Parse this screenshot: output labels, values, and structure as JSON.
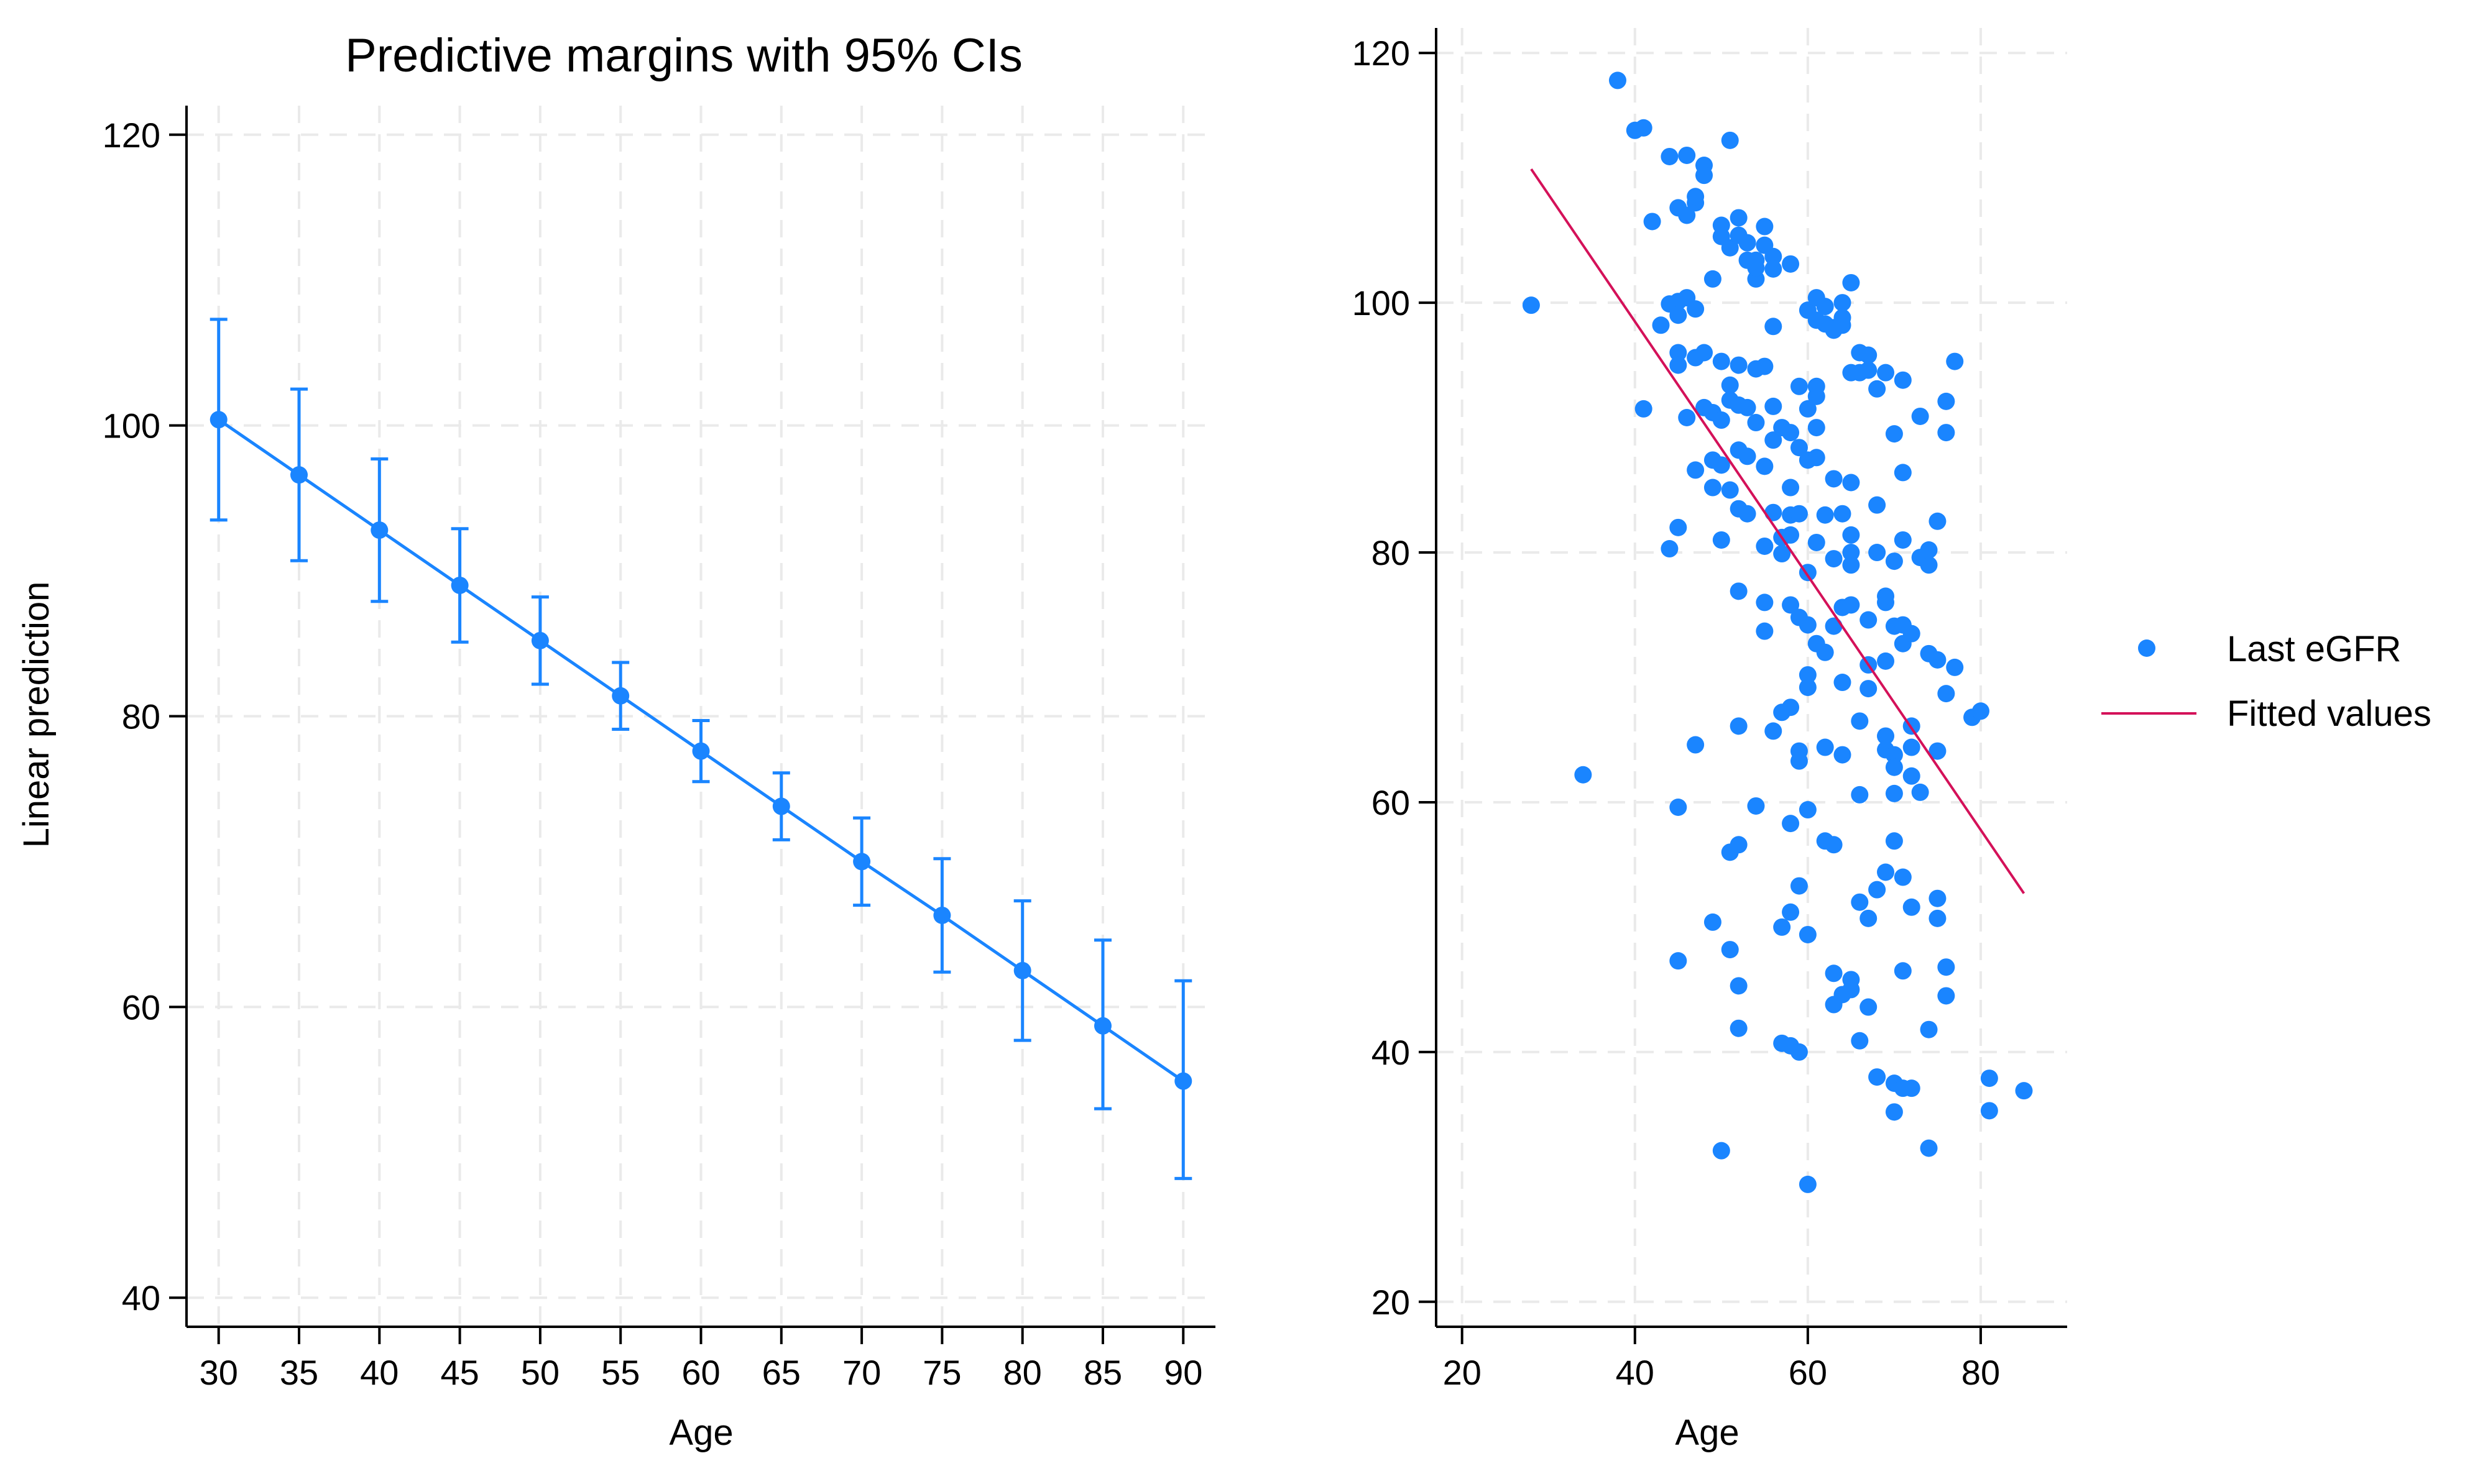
{
  "colors": {
    "series": "#1a85ff",
    "fit": "#d41159",
    "axis": "#000000",
    "grid": "#eaeaea"
  },
  "chart_data": [
    {
      "type": "line",
      "title": "Predictive margins with 95% CIs",
      "xlabel": "Age",
      "ylabel": "Linear prediction",
      "xlim": [
        28,
        92
      ],
      "ylim": [
        38,
        122
      ],
      "xticks": [
        30,
        35,
        40,
        45,
        50,
        55,
        60,
        65,
        70,
        75,
        80,
        85,
        90
      ],
      "yticks": [
        40,
        60,
        80,
        100,
        120
      ],
      "grid": true,
      "series": [
        {
          "name": "Linear prediction",
          "x": [
            30,
            35,
            40,
            45,
            50,
            55,
            60,
            65,
            70,
            75,
            80,
            85,
            90
          ],
          "values": [
            100.4,
            96.6,
            92.8,
            89.0,
            85.2,
            81.4,
            77.6,
            73.8,
            70.0,
            66.3,
            62.5,
            58.7,
            54.9
          ],
          "ci_low": [
            93.5,
            90.7,
            87.9,
            85.1,
            82.2,
            79.1,
            75.5,
            71.5,
            67.0,
            62.4,
            57.7,
            53.0,
            48.2
          ],
          "ci_high": [
            107.3,
            102.5,
            97.7,
            92.9,
            88.2,
            83.7,
            79.7,
            76.1,
            73.0,
            70.2,
            67.3,
            64.6,
            61.8
          ]
        }
      ]
    },
    {
      "type": "scatter",
      "title": "",
      "xlabel": "Age",
      "ylabel": "",
      "xlim": [
        17,
        90
      ],
      "ylim": [
        18,
        122
      ],
      "xticks": [
        20,
        40,
        60,
        80
      ],
      "yticks": [
        20,
        40,
        60,
        80,
        100,
        120
      ],
      "grid": true,
      "legend": {
        "position": "right",
        "entries": [
          "Last eGFR",
          "Fitted values"
        ]
      },
      "series": [
        {
          "name": "Last eGFR",
          "kind": "scatter",
          "points": [
            [
              28,
              99.8
            ],
            [
              34,
              62.2
            ],
            [
              38,
              117.8
            ],
            [
              40,
              113.8
            ],
            [
              41,
              114.0
            ],
            [
              41,
              91.5
            ],
            [
              42,
              106.5
            ],
            [
              43,
              98.2
            ],
            [
              44,
              111.7
            ],
            [
              44,
              99.9
            ],
            [
              44,
              80.3
            ],
            [
              45,
              107.6
            ],
            [
              45,
              100.1
            ],
            [
              45,
              99.0
            ],
            [
              45,
              96.0
            ],
            [
              45,
              95.0
            ],
            [
              45,
              82.0
            ],
            [
              45,
              59.6
            ],
            [
              45,
              47.3
            ],
            [
              46,
              111.8
            ],
            [
              46,
              107.0
            ],
            [
              46,
              100.4
            ],
            [
              46,
              90.8
            ],
            [
              47,
              108.0
            ],
            [
              47,
              108.5
            ],
            [
              47,
              99.5
            ],
            [
              47,
              95.6
            ],
            [
              47,
              86.6
            ],
            [
              47,
              64.6
            ],
            [
              48,
              111.0
            ],
            [
              48,
              110.2
            ],
            [
              48,
              96.0
            ],
            [
              48,
              91.6
            ],
            [
              49,
              101.9
            ],
            [
              49,
              91.2
            ],
            [
              49,
              87.4
            ],
            [
              49,
              85.2
            ],
            [
              49,
              50.4
            ],
            [
              50,
              106.2
            ],
            [
              50,
              105.3
            ],
            [
              50,
              95.3
            ],
            [
              50,
              90.6
            ],
            [
              50,
              87.0
            ],
            [
              50,
              81.0
            ],
            [
              50,
              32.1
            ],
            [
              51,
              113.0
            ],
            [
              51,
              104.4
            ],
            [
              51,
              93.4
            ],
            [
              51,
              92.2
            ],
            [
              51,
              85.0
            ],
            [
              51,
              56.0
            ],
            [
              51,
              48.2
            ],
            [
              52,
              106.8
            ],
            [
              52,
              105.4
            ],
            [
              52,
              95.0
            ],
            [
              52,
              91.8
            ],
            [
              52,
              88.2
            ],
            [
              52,
              83.5
            ],
            [
              52,
              76.9
            ],
            [
              52,
              66.1
            ],
            [
              52,
              56.6
            ],
            [
              52,
              45.3
            ],
            [
              52,
              41.9
            ],
            [
              53,
              104.8
            ],
            [
              53,
              103.4
            ],
            [
              53,
              91.6
            ],
            [
              53,
              87.7
            ],
            [
              53,
              83.1
            ],
            [
              54,
              103.4
            ],
            [
              54,
              101.9
            ],
            [
              54,
              102.8
            ],
            [
              54,
              94.7
            ],
            [
              54,
              90.4
            ],
            [
              54,
              59.7
            ],
            [
              55,
              106.1
            ],
            [
              55,
              104.6
            ],
            [
              55,
              94.9
            ],
            [
              55,
              86.9
            ],
            [
              55,
              80.5
            ],
            [
              55,
              76.0
            ],
            [
              55,
              73.7
            ],
            [
              56,
              103.7
            ],
            [
              56,
              102.7
            ],
            [
              56,
              98.1
            ],
            [
              56,
              91.7
            ],
            [
              56,
              89.0
            ],
            [
              56,
              83.2
            ],
            [
              56,
              65.7
            ],
            [
              57,
              90.0
            ],
            [
              57,
              81.2
            ],
            [
              57,
              79.9
            ],
            [
              57,
              67.2
            ],
            [
              57,
              50.0
            ],
            [
              57,
              40.7
            ],
            [
              58,
              103.1
            ],
            [
              58,
              89.6
            ],
            [
              58,
              85.2
            ],
            [
              58,
              83.0
            ],
            [
              58,
              81.4
            ],
            [
              58,
              75.8
            ],
            [
              58,
              67.6
            ],
            [
              58,
              58.3
            ],
            [
              58,
              51.2
            ],
            [
              58,
              40.5
            ],
            [
              59,
              93.3
            ],
            [
              59,
              88.4
            ],
            [
              59,
              83.1
            ],
            [
              59,
              74.8
            ],
            [
              59,
              64.1
            ],
            [
              59,
              63.3
            ],
            [
              59,
              53.3
            ],
            [
              59,
              40.0
            ],
            [
              60,
              99.4
            ],
            [
              60,
              91.5
            ],
            [
              60,
              87.4
            ],
            [
              60,
              78.4
            ],
            [
              60,
              74.2
            ],
            [
              60,
              70.2
            ],
            [
              60,
              69.2
            ],
            [
              60,
              59.4
            ],
            [
              60,
              49.4
            ],
            [
              60,
              29.4
            ],
            [
              61,
              100.4
            ],
            [
              61,
              98.6
            ],
            [
              61,
              93.3
            ],
            [
              61,
              92.5
            ],
            [
              61,
              90.0
            ],
            [
              61,
              87.6
            ],
            [
              61,
              80.8
            ],
            [
              61,
              72.7
            ],
            [
              62,
              99.7
            ],
            [
              62,
              98.3
            ],
            [
              62,
              83.0
            ],
            [
              62,
              72.0
            ],
            [
              62,
              64.4
            ],
            [
              62,
              56.9
            ],
            [
              63,
              98.0
            ],
            [
              63,
              97.8
            ],
            [
              63,
              85.9
            ],
            [
              63,
              79.5
            ],
            [
              63,
              74.1
            ],
            [
              63,
              56.6
            ],
            [
              63,
              46.3
            ],
            [
              63,
              43.8
            ],
            [
              64,
              100.0
            ],
            [
              64,
              98.8
            ],
            [
              64,
              98.2
            ],
            [
              64,
              83.1
            ],
            [
              64,
              75.6
            ],
            [
              64,
              69.6
            ],
            [
              64,
              63.8
            ],
            [
              64,
              44.6
            ],
            [
              65,
              101.6
            ],
            [
              65,
              94.4
            ],
            [
              65,
              85.6
            ],
            [
              65,
              81.4
            ],
            [
              65,
              80.0
            ],
            [
              65,
              79.0
            ],
            [
              65,
              75.8
            ],
            [
              65,
              45.0
            ],
            [
              65,
              45.8
            ],
            [
              66,
              96.0
            ],
            [
              66,
              94.4
            ],
            [
              66,
              66.5
            ],
            [
              66,
              60.6
            ],
            [
              66,
              52.0
            ],
            [
              66,
              40.9
            ],
            [
              67,
              95.8
            ],
            [
              67,
              94.6
            ],
            [
              67,
              74.6
            ],
            [
              67,
              71.0
            ],
            [
              67,
              69.1
            ],
            [
              67,
              50.7
            ],
            [
              67,
              43.6
            ],
            [
              68,
              93.1
            ],
            [
              68,
              83.8
            ],
            [
              68,
              80.0
            ],
            [
              68,
              53.0
            ],
            [
              68,
              38.0
            ],
            [
              69,
              94.4
            ],
            [
              69,
              71.3
            ],
            [
              69,
              65.3
            ],
            [
              69,
              76.0
            ],
            [
              69,
              76.5
            ],
            [
              69,
              64.2
            ],
            [
              69,
              54.4
            ],
            [
              70,
              89.5
            ],
            [
              70,
              79.3
            ],
            [
              70,
              74.1
            ],
            [
              70,
              63.8
            ],
            [
              70,
              62.8
            ],
            [
              70,
              60.7
            ],
            [
              70,
              56.9
            ],
            [
              70,
              37.5
            ],
            [
              70,
              35.2
            ],
            [
              71,
              93.8
            ],
            [
              71,
              86.4
            ],
            [
              71,
              81.0
            ],
            [
              71,
              74.2
            ],
            [
              71,
              72.7
            ],
            [
              71,
              54.0
            ],
            [
              71,
              46.5
            ],
            [
              71,
              37.1
            ],
            [
              72,
              73.5
            ],
            [
              72,
              66.1
            ],
            [
              72,
              64.4
            ],
            [
              72,
              62.1
            ],
            [
              72,
              51.6
            ],
            [
              72,
              37.1
            ],
            [
              73,
              90.9
            ],
            [
              73,
              79.6
            ],
            [
              73,
              60.8
            ],
            [
              74,
              79.0
            ],
            [
              74,
              80.2
            ],
            [
              74,
              71.9
            ],
            [
              74,
              41.8
            ],
            [
              74,
              32.3
            ],
            [
              75,
              82.5
            ],
            [
              75,
              71.4
            ],
            [
              75,
              64.1
            ],
            [
              75,
              52.3
            ],
            [
              75,
              50.7
            ],
            [
              76,
              92.1
            ],
            [
              76,
              89.6
            ],
            [
              76,
              68.7
            ],
            [
              76,
              46.8
            ],
            [
              76,
              44.5
            ],
            [
              77,
              95.3
            ],
            [
              77,
              70.8
            ],
            [
              79,
              66.8
            ],
            [
              80,
              67.3
            ],
            [
              81,
              37.9
            ],
            [
              81,
              35.3
            ],
            [
              85,
              36.9
            ]
          ]
        },
        {
          "name": "Fitted values",
          "kind": "line",
          "x": [
            28,
            85
          ],
          "values": [
            110.7,
            52.7
          ]
        }
      ]
    }
  ]
}
